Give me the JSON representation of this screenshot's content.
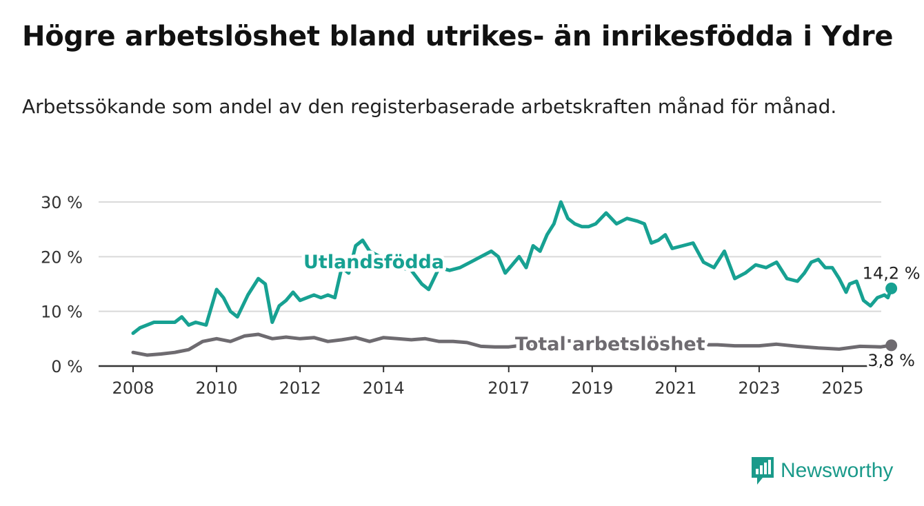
{
  "title": "Högre arbetslöshet bland utrikes- än inrikesfödda i Ydre",
  "subtitle": "Arbetssökande som andel av den registerbaserade arbetskraften månad för månad.",
  "brand": "Newsworthy",
  "colors": {
    "utlandsfodda": "#17a192",
    "total": "#6e6b70",
    "grid": "#d9d9d9",
    "axis": "#333333",
    "brand": "#1a9a8a"
  },
  "chart_data": {
    "type": "line",
    "title": "",
    "xlabel": "",
    "ylabel": "",
    "x_ticks": [
      "2008",
      "2010",
      "2012",
      "2014",
      "2017",
      "2019",
      "2021",
      "2023",
      "2025"
    ],
    "y_ticks": [
      "0 %",
      "10 %",
      "20 %",
      "30 %"
    ],
    "ylim": [
      0,
      30
    ],
    "grid": true,
    "series": [
      {
        "name": "Utlandsfödda",
        "key": "utlandsfodda",
        "end_label": "14,2 %",
        "points": [
          [
            "2008-01",
            6
          ],
          [
            "2008-03",
            7
          ],
          [
            "2008-05",
            7.5
          ],
          [
            "2008-07",
            8
          ],
          [
            "2008-10",
            8
          ],
          [
            "2009-01",
            8
          ],
          [
            "2009-03",
            9
          ],
          [
            "2009-05",
            7.5
          ],
          [
            "2009-07",
            8
          ],
          [
            "2009-10",
            7.5
          ],
          [
            "2010-01",
            14
          ],
          [
            "2010-03",
            12.5
          ],
          [
            "2010-05",
            10
          ],
          [
            "2010-07",
            9
          ],
          [
            "2010-10",
            13
          ],
          [
            "2011-01",
            16
          ],
          [
            "2011-03",
            15
          ],
          [
            "2011-05",
            8
          ],
          [
            "2011-07",
            11
          ],
          [
            "2011-09",
            12
          ],
          [
            "2011-11",
            13.5
          ],
          [
            "2012-01",
            12
          ],
          [
            "2012-03",
            12.5
          ],
          [
            "2012-05",
            13
          ],
          [
            "2012-07",
            12.5
          ],
          [
            "2012-09",
            13
          ],
          [
            "2012-11",
            12.5
          ],
          [
            "2013-01",
            18
          ],
          [
            "2013-03",
            17
          ],
          [
            "2013-05",
            22
          ],
          [
            "2013-07",
            23
          ],
          [
            "2013-09",
            21
          ],
          [
            "2013-12",
            20
          ],
          [
            "2014-03",
            19
          ],
          [
            "2014-06",
            18
          ],
          [
            "2014-09",
            17.5
          ],
          [
            "2014-12",
            15
          ],
          [
            "2015-02",
            14
          ],
          [
            "2015-05",
            18
          ],
          [
            "2015-08",
            17.5
          ],
          [
            "2015-11",
            18
          ],
          [
            "2016-02",
            19
          ],
          [
            "2016-05",
            20
          ],
          [
            "2016-08",
            21
          ],
          [
            "2016-10",
            20
          ],
          [
            "2016-12",
            17
          ],
          [
            "2017-02",
            18.5
          ],
          [
            "2017-04",
            20
          ],
          [
            "2017-06",
            18
          ],
          [
            "2017-08",
            22
          ],
          [
            "2017-10",
            21
          ],
          [
            "2017-12",
            24
          ],
          [
            "2018-02",
            26
          ],
          [
            "2018-04",
            30
          ],
          [
            "2018-06",
            27
          ],
          [
            "2018-08",
            26
          ],
          [
            "2018-10",
            25.5
          ],
          [
            "2018-12",
            25.5
          ],
          [
            "2019-02",
            26
          ],
          [
            "2019-05",
            28
          ],
          [
            "2019-08",
            26
          ],
          [
            "2019-11",
            27
          ],
          [
            "2020-02",
            26.5
          ],
          [
            "2020-04",
            26
          ],
          [
            "2020-06",
            22.5
          ],
          [
            "2020-08",
            23
          ],
          [
            "2020-10",
            24
          ],
          [
            "2020-12",
            21.5
          ],
          [
            "2021-03",
            22
          ],
          [
            "2021-06",
            22.5
          ],
          [
            "2021-09",
            19
          ],
          [
            "2021-12",
            18
          ],
          [
            "2022-03",
            21
          ],
          [
            "2022-06",
            16
          ],
          [
            "2022-09",
            17
          ],
          [
            "2022-12",
            18.5
          ],
          [
            "2023-03",
            18
          ],
          [
            "2023-06",
            19
          ],
          [
            "2023-09",
            16
          ],
          [
            "2023-12",
            15.5
          ],
          [
            "2024-02",
            17
          ],
          [
            "2024-04",
            19
          ],
          [
            "2024-06",
            19.5
          ],
          [
            "2024-08",
            18
          ],
          [
            "2024-10",
            18
          ],
          [
            "2024-12",
            16
          ],
          [
            "2025-02",
            13.5
          ],
          [
            "2025-03",
            15
          ],
          [
            "2025-05",
            15.5
          ],
          [
            "2025-07",
            12
          ],
          [
            "2025-09",
            11
          ],
          [
            "2025-11",
            12.5
          ],
          [
            "2026-01",
            13
          ],
          [
            "2026-02",
            12.5
          ],
          [
            "2026-03",
            14.2
          ]
        ]
      },
      {
        "name": "Total arbetslöshet",
        "key": "total",
        "end_label": "3,8 %",
        "points": [
          [
            "2008-01",
            2.5
          ],
          [
            "2008-05",
            2
          ],
          [
            "2008-09",
            2.2
          ],
          [
            "2009-01",
            2.5
          ],
          [
            "2009-05",
            3
          ],
          [
            "2009-09",
            4.5
          ],
          [
            "2010-01",
            5
          ],
          [
            "2010-05",
            4.5
          ],
          [
            "2010-09",
            5.5
          ],
          [
            "2011-01",
            5.8
          ],
          [
            "2011-05",
            5
          ],
          [
            "2011-09",
            5.3
          ],
          [
            "2012-01",
            5
          ],
          [
            "2012-05",
            5.2
          ],
          [
            "2012-09",
            4.5
          ],
          [
            "2013-01",
            4.8
          ],
          [
            "2013-05",
            5.2
          ],
          [
            "2013-09",
            4.5
          ],
          [
            "2014-01",
            5.2
          ],
          [
            "2014-05",
            5
          ],
          [
            "2014-09",
            4.8
          ],
          [
            "2015-01",
            5
          ],
          [
            "2015-05",
            4.5
          ],
          [
            "2015-09",
            4.5
          ],
          [
            "2016-01",
            4.3
          ],
          [
            "2016-05",
            3.6
          ],
          [
            "2016-09",
            3.5
          ],
          [
            "2017-01",
            3.5
          ],
          [
            "2017-05",
            3.8
          ],
          [
            "2017-09",
            4.2
          ],
          [
            "2018-01",
            4.4
          ],
          [
            "2018-06",
            4.6
          ],
          [
            "2019-01",
            4.4
          ],
          [
            "2019-06",
            4.2
          ],
          [
            "2020-01",
            4.1
          ],
          [
            "2020-06",
            4.3
          ],
          [
            "2021-01",
            4.1
          ],
          [
            "2021-06",
            3.9
          ],
          [
            "2022-01",
            3.9
          ],
          [
            "2022-06",
            3.7
          ],
          [
            "2023-01",
            3.7
          ],
          [
            "2023-06",
            4
          ],
          [
            "2023-12",
            3.6
          ],
          [
            "2024-06",
            3.3
          ],
          [
            "2024-12",
            3.1
          ],
          [
            "2025-06",
            3.6
          ],
          [
            "2025-12",
            3.5
          ],
          [
            "2026-03",
            3.8
          ]
        ]
      }
    ]
  }
}
